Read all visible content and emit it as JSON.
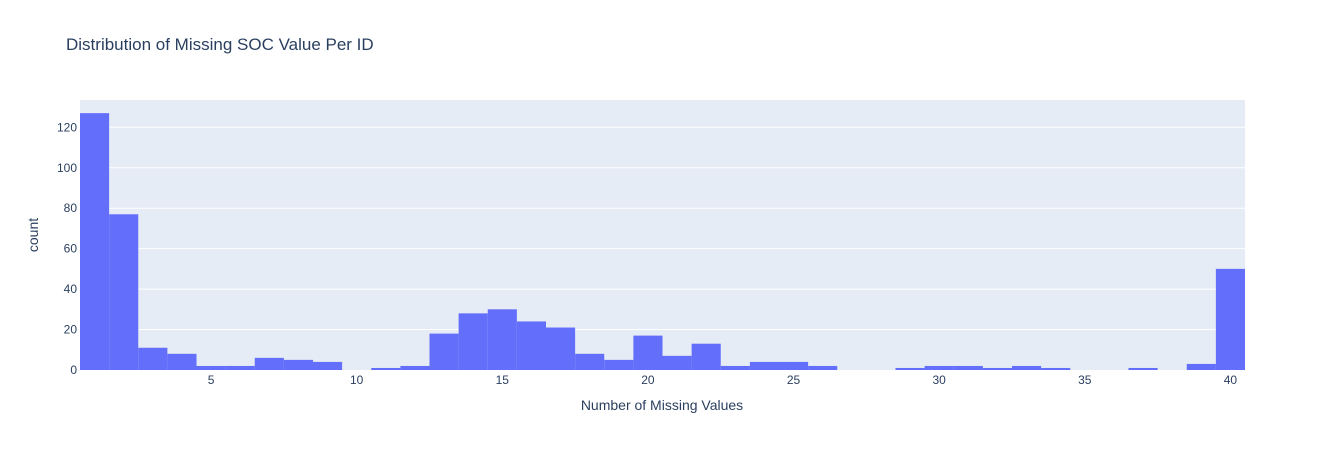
{
  "chart_data": {
    "type": "bar",
    "title": "Distribution of Missing SOC Value Per ID",
    "xlabel": "Number of Missing Values",
    "ylabel": "count",
    "xlim": [
      0.5,
      40.5
    ],
    "ylim": [
      0,
      133.5
    ],
    "bin_start": 0.5,
    "bin_width": 1,
    "values": [
      127,
      77,
      11,
      8,
      2,
      2,
      6,
      5,
      4,
      0,
      1,
      2,
      18,
      28,
      30,
      24,
      21,
      8,
      5,
      17,
      7,
      13,
      2,
      4,
      4,
      2,
      0,
      0,
      1,
      2,
      2,
      1,
      2,
      1,
      0,
      0,
      1,
      0,
      3,
      50
    ],
    "x_ticks": [
      5,
      10,
      15,
      20,
      25,
      30,
      35,
      40
    ],
    "y_ticks": [
      0,
      20,
      40,
      60,
      80,
      100,
      120
    ],
    "grid": true,
    "bar_color": "#636efa",
    "plot_bg_color": "#e5ecf6",
    "text_color": "#2a3f5f"
  }
}
